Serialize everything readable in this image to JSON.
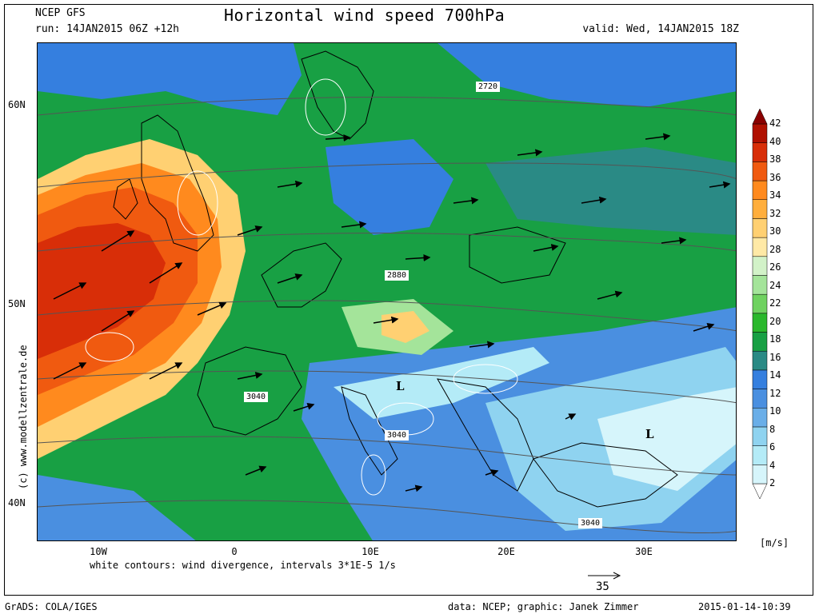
{
  "header": {
    "model": "NCEP GFS",
    "run": "run: 14JAN2015 06Z +12h",
    "title": "Horizontal wind speed 700hPa",
    "valid": "valid: Wed, 14JAN2015 18Z"
  },
  "lat_labels": [
    "60N",
    "50N",
    "40N"
  ],
  "lon_labels": [
    "10W",
    "0",
    "10E",
    "20E",
    "30E"
  ],
  "vertical_credit": "(c) www.modellzentrale.de",
  "footer": {
    "note": "white contours: wind divergence, intervals 3*1E-5 1/s",
    "grads": "GrADS: COLA/IGES",
    "data": "data: NCEP; graphic: Janek Zimmer",
    "timestamp": "2015-01-14-10:39"
  },
  "reference_vector": {
    "label": "35"
  },
  "colorbar": {
    "unit": "[m/s]",
    "ticks": [
      "42",
      "40",
      "38",
      "36",
      "34",
      "32",
      "30",
      "28",
      "26",
      "24",
      "22",
      "20",
      "18",
      "16",
      "14",
      "12",
      "10",
      "8",
      "6",
      "4",
      "2"
    ],
    "colors": [
      "#ffffff",
      "#d6f5fb",
      "#b4ebf7",
      "#8fd3f0",
      "#6aaee8",
      "#4a8fe0",
      "#357fdf",
      "#2a8a85",
      "#18a044",
      "#2ab82c",
      "#6fd260",
      "#a4e49a",
      "#d2f2c8",
      "#ffe9a6",
      "#ffd072",
      "#ffae3c",
      "#ff8a1e",
      "#f05a10",
      "#d82e08",
      "#b01000",
      "#8a0000"
    ]
  },
  "map": {
    "contour_labels": [
      "2720",
      "2880",
      "3040",
      "3040",
      "3040"
    ],
    "low_markers": [
      "L",
      "L"
    ]
  }
}
